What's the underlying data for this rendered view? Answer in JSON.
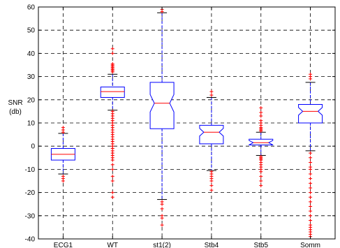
{
  "chart_data": {
    "type": "box",
    "title": "",
    "ylabel": "SNR",
    "ylabel_unit": "(db)",
    "xlabel": "",
    "ylim": [
      -40,
      60
    ],
    "yticks": [
      -40,
      -30,
      -20,
      -10,
      0,
      10,
      20,
      30,
      40,
      50,
      60
    ],
    "grid": true,
    "categories": [
      "ECG1",
      "WT",
      "st1(2)",
      "Stb4",
      "Stb5",
      "Somm"
    ],
    "boxes": [
      {
        "q1": -6,
        "median": -3.5,
        "q3": -1,
        "whisker_low": -12,
        "whisker_high": 5.5,
        "notched": false,
        "outliers": [
          -15,
          -14,
          -13,
          6,
          7,
          8
        ]
      },
      {
        "q1": 21,
        "median": 23.5,
        "q3": 25.5,
        "whisker_low": 15.5,
        "whisker_high": 31,
        "notched": false,
        "outliers": [
          -22,
          -20,
          -15,
          -13,
          -10,
          -8,
          -6,
          -5,
          -4,
          -3,
          -2,
          -1,
          0,
          1,
          2,
          3,
          4,
          5,
          6,
          7,
          8,
          9,
          10,
          11,
          12,
          13,
          14,
          15,
          32,
          32.5,
          33,
          33.5,
          34,
          34.5,
          35,
          35.5,
          40,
          42
        ]
      },
      {
        "q1": 7.5,
        "median": 18.5,
        "q3": 27.5,
        "whisker_low": -23,
        "whisker_high": 57.5,
        "notched": true,
        "outliers": [
          -24,
          -25,
          -27,
          -30,
          -31,
          -34,
          58,
          59
        ]
      },
      {
        "q1": 1,
        "median": 6,
        "q3": 9,
        "whisker_low": -10.5,
        "whisker_high": 21,
        "notched": true,
        "outliers": [
          -11,
          -12,
          -13,
          -14,
          -15,
          -17,
          -19,
          22,
          23.5
        ]
      },
      {
        "q1": 0.5,
        "median": 1.5,
        "q3": 3,
        "whisker_low": -4,
        "whisker_high": 6,
        "notched": true,
        "outliers": [
          -4.5,
          -5,
          -5.5,
          -6,
          -7,
          -8,
          -9,
          -10,
          -11,
          -13,
          -15,
          -17,
          6.5,
          7,
          7.5,
          8,
          9,
          10,
          11,
          13,
          14.5,
          16.5
        ]
      },
      {
        "q1": 10,
        "median": 15,
        "q3": 18,
        "whisker_low": -2,
        "whisker_high": 27.5,
        "notched": true,
        "outliers": [
          -3,
          -5,
          -7,
          -9,
          -10,
          -12,
          -14,
          -16,
          -18,
          -20,
          -22,
          -24,
          -26,
          -28,
          -30,
          -32,
          -34,
          -35,
          -36,
          -37,
          -38,
          -39,
          29,
          30,
          31
        ]
      }
    ],
    "colors": {
      "box": "#0000ff",
      "median": "#ff0000",
      "outlier": "#ff0000",
      "grid": "#000000"
    }
  }
}
